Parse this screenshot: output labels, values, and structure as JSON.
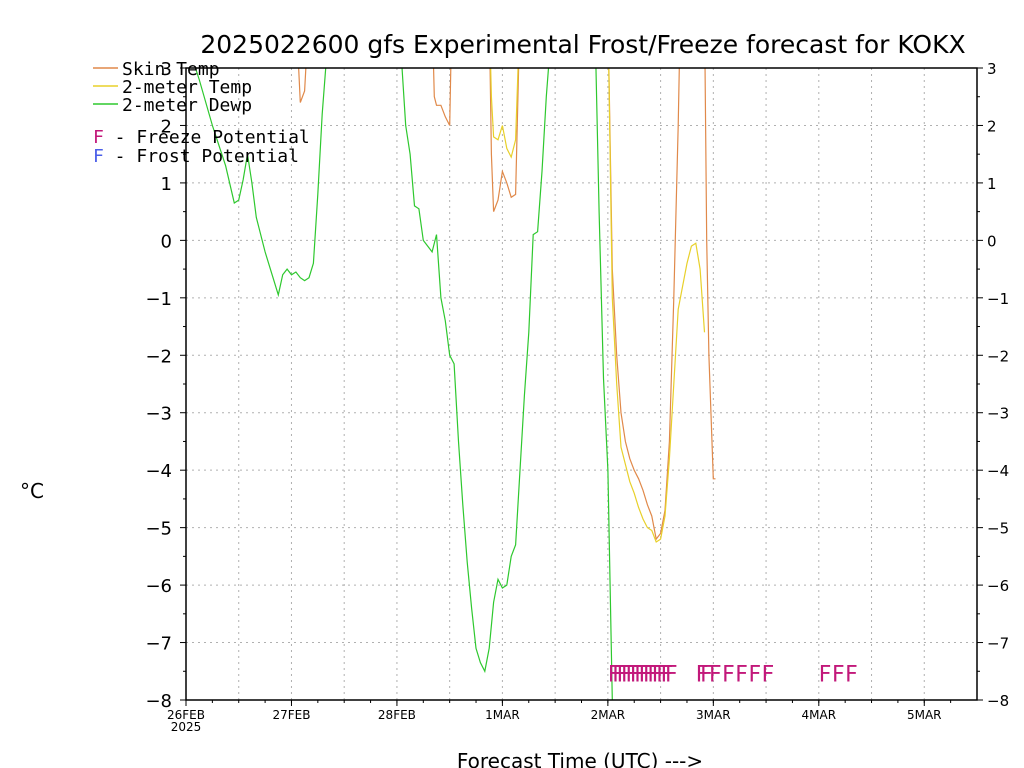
{
  "chart_data": {
    "type": "line",
    "title": "2025022600 gfs Experimental Frost/Freeze forecast for KOKX",
    "ylabel": "°C",
    "xlabel": "Forecast Time (UTC) --->",
    "ylim": [
      -8,
      3
    ],
    "xlim": [
      "2025-02-26T00",
      "2025-03-05T12"
    ],
    "yticks": [
      3,
      2,
      1,
      0,
      -1,
      -2,
      -3,
      -4,
      -5,
      -6,
      -7,
      -8
    ],
    "xticks": [
      {
        "x": "2025-02-26T00",
        "label": "26FEB",
        "sublabel": "2025"
      },
      {
        "x": "2025-02-27T00",
        "label": "27FEB"
      },
      {
        "x": "2025-02-28T00",
        "label": "28FEB"
      },
      {
        "x": "2025-03-01T00",
        "label": "1MAR"
      },
      {
        "x": "2025-03-02T00",
        "label": "2MAR"
      },
      {
        "x": "2025-03-03T00",
        "label": "3MAR"
      },
      {
        "x": "2025-03-04T00",
        "label": "4MAR"
      },
      {
        "x": "2025-03-05T00",
        "label": "5MAR"
      }
    ],
    "grid": true,
    "legend_position": "top-left",
    "series": [
      {
        "name": "Skin Temp",
        "color": "#e0894a",
        "points": [
          [
            "2025-02-27T01",
            4
          ],
          [
            "2025-02-27T02",
            2.4
          ],
          [
            "2025-02-27T03",
            2.6
          ],
          [
            "2025-02-27T04",
            4
          ],
          [
            "2025-02-28T08",
            4
          ],
          [
            "2025-02-28T08:30",
            2.5
          ],
          [
            "2025-02-28T09",
            2.35
          ],
          [
            "2025-02-28T10",
            2.35
          ],
          [
            "2025-02-28T11",
            2.15
          ],
          [
            "2025-02-28T12",
            2.0
          ],
          [
            "2025-02-28T12:30",
            4
          ],
          [
            "2025-02-28T21",
            4
          ],
          [
            "2025-02-28T21:30",
            1.5
          ],
          [
            "2025-02-28T22",
            0.5
          ],
          [
            "2025-02-28T23",
            0.7
          ],
          [
            "2025-03-01T00",
            1.2
          ],
          [
            "2025-03-01T01",
            1.0
          ],
          [
            "2025-03-01T02",
            0.75
          ],
          [
            "2025-03-01T03",
            0.8
          ],
          [
            "2025-03-01T04",
            4
          ],
          [
            "2025-03-02T00",
            4
          ],
          [
            "2025-03-02T01",
            -0.5
          ],
          [
            "2025-03-02T02",
            -2.0
          ],
          [
            "2025-03-02T03",
            -3.0
          ],
          [
            "2025-03-02T04",
            -3.5
          ],
          [
            "2025-03-02T05",
            -3.8
          ],
          [
            "2025-03-02T06",
            -4.0
          ],
          [
            "2025-03-02T07",
            -4.15
          ],
          [
            "2025-03-02T08",
            -4.35
          ],
          [
            "2025-03-02T09",
            -4.6
          ],
          [
            "2025-03-02T10",
            -4.8
          ],
          [
            "2025-03-02T11",
            -5.2
          ],
          [
            "2025-03-02T12",
            -5.1
          ],
          [
            "2025-03-02T13",
            -4.7
          ],
          [
            "2025-03-02T14",
            -3.5
          ],
          [
            "2025-03-02T15",
            -1.0
          ],
          [
            "2025-03-02T16",
            2.0
          ],
          [
            "2025-03-02T16:30",
            4
          ],
          [
            "2025-03-02T22",
            4
          ],
          [
            "2025-03-02T22:30",
            0
          ],
          [
            "2025-03-02T23",
            -2.0
          ],
          [
            "2025-03-03T00",
            -4.15
          ],
          [
            "2025-03-03T00:30",
            -4.15
          ]
        ]
      },
      {
        "name": "2-meter Temp",
        "color": "#e8d02a",
        "points": [
          [
            "2025-02-28T21",
            4
          ],
          [
            "2025-02-28T21:30",
            2.5
          ],
          [
            "2025-02-28T22",
            1.8
          ],
          [
            "2025-02-28T23",
            1.75
          ],
          [
            "2025-03-01T00",
            2.0
          ],
          [
            "2025-03-01T01",
            1.6
          ],
          [
            "2025-03-01T02",
            1.45
          ],
          [
            "2025-03-01T03",
            1.75
          ],
          [
            "2025-03-01T04",
            4
          ],
          [
            "2025-03-02T00",
            4
          ],
          [
            "2025-03-02T01",
            -1.0
          ],
          [
            "2025-03-02T02",
            -2.5
          ],
          [
            "2025-03-02T03",
            -3.6
          ],
          [
            "2025-03-02T04",
            -3.9
          ],
          [
            "2025-03-02T05",
            -4.2
          ],
          [
            "2025-03-02T06",
            -4.4
          ],
          [
            "2025-03-02T07",
            -4.65
          ],
          [
            "2025-03-02T08",
            -4.85
          ],
          [
            "2025-03-02T09",
            -5.0
          ],
          [
            "2025-03-02T10",
            -5.05
          ],
          [
            "2025-03-02T11",
            -5.25
          ],
          [
            "2025-03-02T12",
            -5.2
          ],
          [
            "2025-03-02T13",
            -4.8
          ],
          [
            "2025-03-02T14",
            -3.8
          ],
          [
            "2025-03-02T15",
            -2.5
          ],
          [
            "2025-03-02T16",
            -1.2
          ],
          [
            "2025-03-02T17",
            -0.8
          ],
          [
            "2025-03-02T18",
            -0.4
          ],
          [
            "2025-03-02T19",
            -0.1
          ],
          [
            "2025-03-02T20",
            -0.05
          ],
          [
            "2025-03-02T21",
            -0.5
          ],
          [
            "2025-03-02T22",
            -1.6
          ]
        ]
      },
      {
        "name": "2-meter Dewp",
        "color": "#2ec82e",
        "points": [
          [
            "2025-02-26T00",
            3.5
          ],
          [
            "2025-02-26T03",
            2.8
          ],
          [
            "2025-02-26T06",
            2.0
          ],
          [
            "2025-02-26T09",
            1.3
          ],
          [
            "2025-02-26T11",
            0.65
          ],
          [
            "2025-02-26T12",
            0.7
          ],
          [
            "2025-02-26T13",
            1.05
          ],
          [
            "2025-02-26T14",
            1.5
          ],
          [
            "2025-02-26T15",
            1.0
          ],
          [
            "2025-02-26T16",
            0.4
          ],
          [
            "2025-02-26T18",
            -0.2
          ],
          [
            "2025-02-26T20",
            -0.7
          ],
          [
            "2025-02-26T21",
            -0.95
          ],
          [
            "2025-02-26T22",
            -0.6
          ],
          [
            "2025-02-26T23",
            -0.5
          ],
          [
            "2025-02-27T00",
            -0.6
          ],
          [
            "2025-02-27T01",
            -0.55
          ],
          [
            "2025-02-27T02",
            -0.65
          ],
          [
            "2025-02-27T03",
            -0.7
          ],
          [
            "2025-02-27T04",
            -0.65
          ],
          [
            "2025-02-27T05",
            -0.4
          ],
          [
            "2025-02-27T06",
            0.8
          ],
          [
            "2025-02-27T07",
            2.2
          ],
          [
            "2025-02-27T08",
            3.2
          ],
          [
            "2025-02-28T01",
            3.2
          ],
          [
            "2025-02-28T02",
            2.0
          ],
          [
            "2025-02-28T03",
            1.5
          ],
          [
            "2025-02-28T04",
            0.6
          ],
          [
            "2025-02-28T05",
            0.55
          ],
          [
            "2025-02-28T06",
            0.0
          ],
          [
            "2025-02-28T07",
            -0.1
          ],
          [
            "2025-02-28T08",
            -0.2
          ],
          [
            "2025-02-28T09",
            0.1
          ],
          [
            "2025-02-28T10",
            -1.0
          ],
          [
            "2025-02-28T11",
            -1.4
          ],
          [
            "2025-02-28T12",
            -2.0
          ],
          [
            "2025-02-28T13",
            -2.15
          ],
          [
            "2025-02-28T14",
            -3.5
          ],
          [
            "2025-02-28T15",
            -4.6
          ],
          [
            "2025-02-28T16",
            -5.6
          ],
          [
            "2025-02-28T17",
            -6.4
          ],
          [
            "2025-02-28T18",
            -7.1
          ],
          [
            "2025-02-28T19",
            -7.35
          ],
          [
            "2025-02-28T20",
            -7.5
          ],
          [
            "2025-02-28T21",
            -7.1
          ],
          [
            "2025-02-28T22",
            -6.3
          ],
          [
            "2025-02-28T23",
            -5.9
          ],
          [
            "2025-03-01T00",
            -6.05
          ],
          [
            "2025-03-01T01",
            -6.0
          ],
          [
            "2025-03-01T02",
            -5.5
          ],
          [
            "2025-03-01T03",
            -5.3
          ],
          [
            "2025-03-01T04",
            -4.0
          ],
          [
            "2025-03-01T05",
            -2.7
          ],
          [
            "2025-03-01T06",
            -1.6
          ],
          [
            "2025-03-01T07",
            0.1
          ],
          [
            "2025-03-01T08",
            0.15
          ],
          [
            "2025-03-01T09",
            1.2
          ],
          [
            "2025-03-01T10",
            2.5
          ],
          [
            "2025-03-01T11",
            3.5
          ],
          [
            "2025-03-01T21",
            4
          ],
          [
            "2025-03-01T22",
            0.5
          ],
          [
            "2025-03-01T23",
            -2.4
          ],
          [
            "2025-03-02T00",
            -4.0
          ],
          [
            "2025-03-02T01",
            -8
          ]
        ]
      }
    ],
    "freeze_potential": {
      "label": "F - Freeze Potential",
      "color": "#c2187a",
      "flag_value": -7.5,
      "times": [
        "2025-03-02T00",
        "2025-03-02T01",
        "2025-03-02T02",
        "2025-03-02T03",
        "2025-03-02T04",
        "2025-03-02T05",
        "2025-03-02T06",
        "2025-03-02T07",
        "2025-03-02T08",
        "2025-03-02T09",
        "2025-03-02T10",
        "2025-03-02T11",
        "2025-03-02T12",
        "2025-03-02T13",
        "2025-03-02T20",
        "2025-03-02T21",
        "2025-03-02T23",
        "2025-03-03T02",
        "2025-03-03T05",
        "2025-03-03T08",
        "2025-03-03T11",
        "2025-03-04T00",
        "2025-03-04T03",
        "2025-03-04T06"
      ]
    },
    "frost_potential": {
      "label": "F - Frost Potential",
      "color": "#4a5ee8",
      "times": []
    }
  }
}
